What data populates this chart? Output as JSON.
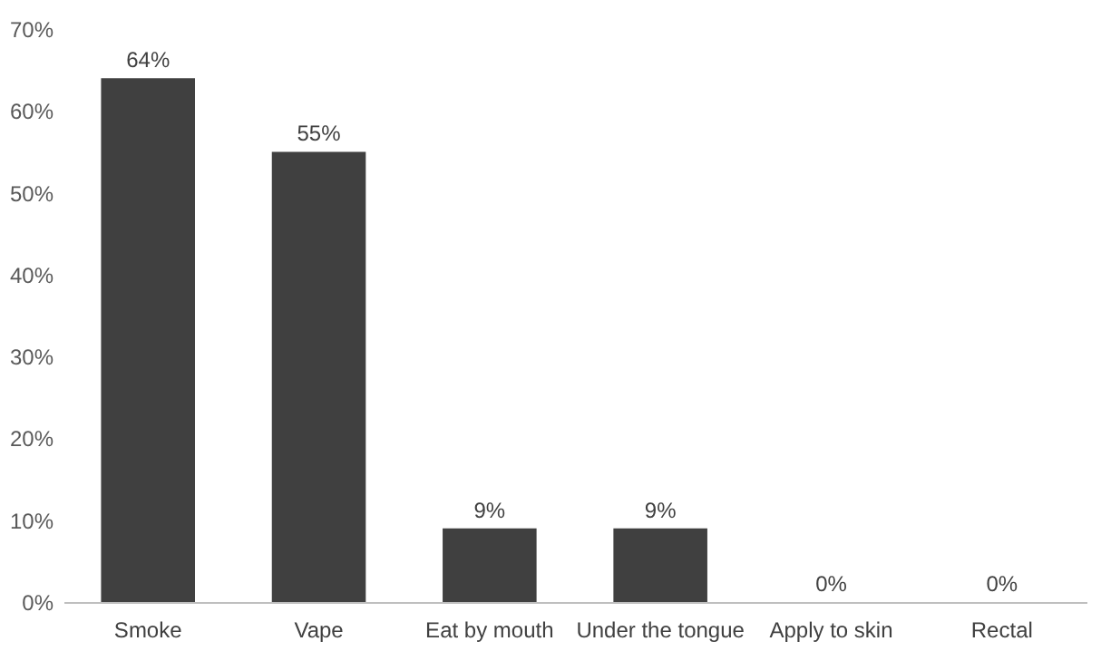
{
  "chart_data": {
    "type": "bar",
    "categories": [
      "Smoke",
      "Vape",
      "Eat by mouth",
      "Under the tongue",
      "Apply to skin",
      "Rectal"
    ],
    "values": [
      64,
      55,
      9,
      9,
      0,
      0
    ],
    "value_labels": [
      "64%",
      "55%",
      "9%",
      "9%",
      "0%",
      "0%"
    ],
    "color": "#404040",
    "ylim": [
      0,
      70
    ],
    "yticks": [
      {
        "value": 0,
        "label": "0%"
      },
      {
        "value": 10,
        "label": "10%"
      },
      {
        "value": 20,
        "label": "20%"
      },
      {
        "value": 30,
        "label": "30%"
      },
      {
        "value": 40,
        "label": "40%"
      },
      {
        "value": 50,
        "label": "50%"
      },
      {
        "value": 60,
        "label": "60%"
      },
      {
        "value": 70,
        "label": "70%"
      }
    ],
    "grid": false
  }
}
